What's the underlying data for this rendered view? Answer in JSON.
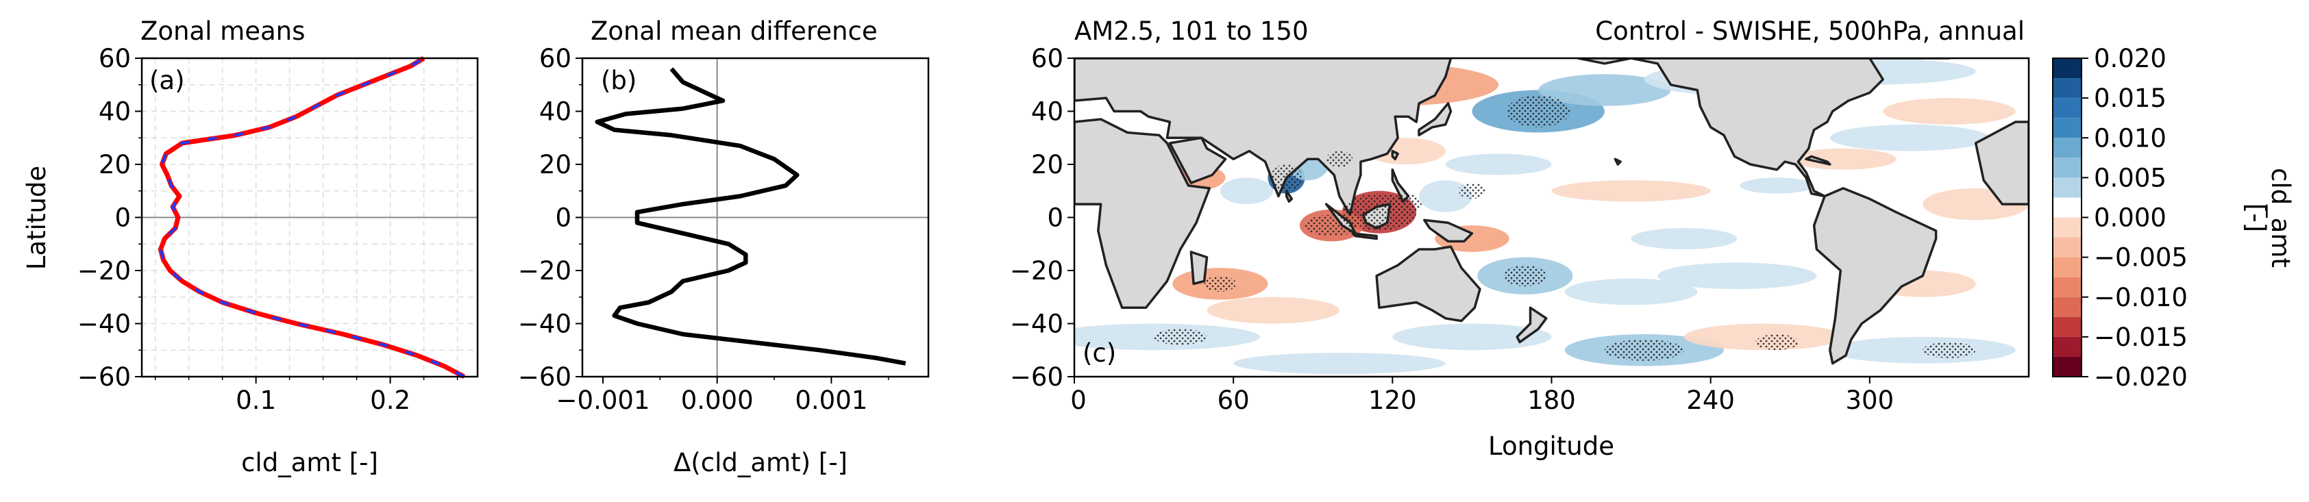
{
  "colors": {
    "ctrl_line": "#ff0000",
    "exp_line": "#1f3bff",
    "diff_line": "#000000",
    "land": "#d8d8d8",
    "coast": "#222222"
  },
  "panel_a": {
    "title": "Zonal means",
    "tag": "(a)",
    "xlabel": "cld_amt [-]",
    "ylabel": "Latitude",
    "xticks": [
      "0.1",
      "0.2"
    ],
    "yticks": [
      "60",
      "40",
      "20",
      "0",
      "−20",
      "−40",
      "−60"
    ]
  },
  "panel_b": {
    "title": "Zonal mean difference",
    "tag": "(b)",
    "xlabel": "Δ(cld_amt) [-]",
    "xticks": [
      "−0.001",
      "0.000",
      "0.001"
    ],
    "yticks": [
      "60",
      "40",
      "20",
      "0",
      "−20",
      "−40",
      "−60"
    ]
  },
  "panel_c": {
    "title_left": "AM2.5, 101 to 150",
    "title_right": "Control - SWISHE, 500hPa, annual",
    "tag": "(c)",
    "xlabel": "Longitude",
    "xticks": [
      "0",
      "60",
      "120",
      "180",
      "240",
      "300"
    ],
    "yticks": [
      "60",
      "40",
      "20",
      "0",
      "−20",
      "−40",
      "−60"
    ]
  },
  "colorbar": {
    "label_line1": "cld_amt",
    "label_line2": "[-]",
    "ticks": [
      "0.020",
      "0.015",
      "0.010",
      "0.005",
      "0.000",
      "−0.005",
      "−0.010",
      "−0.015",
      "−0.020"
    ],
    "levels": [
      "#053061",
      "#1f5f9e",
      "#3b87bf",
      "#6aa9d0",
      "#a0cae2",
      "#cfe3ef",
      "#f5f5f5",
      "#fbd7c4",
      "#f4a482",
      "#de6a55",
      "#c03a3a",
      "#9c1a2d",
      "#67001f"
    ]
  },
  "chart_data": [
    {
      "type": "line",
      "title": "Zonal means",
      "xlabel": "cld_amt [-]",
      "ylabel": "Latitude",
      "xlim": [
        0.015,
        0.265
      ],
      "ylim": [
        -60,
        60
      ],
      "series": [
        {
          "points": [
            [
              0.255,
              -60
            ],
            [
              0.24,
              -56
            ],
            [
              0.22,
              -52
            ],
            [
              0.195,
              -48
            ],
            [
              0.165,
              -44
            ],
            [
              0.13,
              -40
            ],
            [
              0.1,
              -36
            ],
            [
              0.075,
              -32
            ],
            [
              0.058,
              -28
            ],
            [
              0.045,
              -24
            ],
            [
              0.036,
              -20
            ],
            [
              0.031,
              -16
            ],
            [
              0.029,
              -12
            ],
            [
              0.032,
              -8
            ],
            [
              0.04,
              -4
            ],
            [
              0.042,
              0
            ],
            [
              0.038,
              4
            ],
            [
              0.043,
              8
            ],
            [
              0.037,
              12
            ],
            [
              0.034,
              16
            ],
            [
              0.03,
              20
            ],
            [
              0.033,
              24
            ],
            [
              0.045,
              28
            ],
            [
              0.085,
              31
            ],
            [
              0.11,
              34
            ],
            [
              0.12,
              36
            ],
            [
              0.13,
              38
            ],
            [
              0.145,
              42
            ],
            [
              0.16,
              46
            ],
            [
              0.18,
              50
            ],
            [
              0.2,
              54
            ],
            [
              0.215,
              57
            ],
            [
              0.225,
              60
            ]
          ]
        },
        {
          "points": [
            [
              0.255,
              -60
            ],
            [
              0.24,
              -56
            ],
            [
              0.22,
              -52
            ],
            [
              0.195,
              -48
            ],
            [
              0.165,
              -44
            ],
            [
              0.13,
              -40
            ],
            [
              0.1,
              -36
            ],
            [
              0.075,
              -32
            ],
            [
              0.058,
              -28
            ],
            [
              0.045,
              -24
            ],
            [
              0.036,
              -20
            ],
            [
              0.031,
              -16
            ],
            [
              0.029,
              -12
            ],
            [
              0.032,
              -8
            ],
            [
              0.04,
              -4
            ],
            [
              0.042,
              0
            ],
            [
              0.038,
              4
            ],
            [
              0.043,
              8
            ],
            [
              0.037,
              12
            ],
            [
              0.034,
              16
            ],
            [
              0.03,
              20
            ],
            [
              0.033,
              24
            ],
            [
              0.045,
              28
            ],
            [
              0.085,
              31
            ],
            [
              0.11,
              34
            ],
            [
              0.12,
              36
            ],
            [
              0.13,
              38
            ],
            [
              0.145,
              42
            ],
            [
              0.16,
              46
            ],
            [
              0.18,
              50
            ],
            [
              0.2,
              54
            ],
            [
              0.215,
              57
            ],
            [
              0.225,
              60
            ]
          ]
        }
      ]
    },
    {
      "type": "line",
      "title": "Zonal mean difference",
      "xlabel": "Δ(cld_amt) [-]",
      "xlim": [
        -0.00118,
        0.00185
      ],
      "ylim": [
        -60,
        60
      ],
      "series": [
        {
          "points": [
            [
              0.00165,
              -55
            ],
            [
              0.0014,
              -53
            ],
            [
              0.0009,
              -50
            ],
            [
              0.0003,
              -47
            ],
            [
              -0.0003,
              -44
            ],
            [
              -0.0007,
              -40
            ],
            [
              -0.0009,
              -37
            ],
            [
              -0.00085,
              -34
            ],
            [
              -0.0006,
              -32
            ],
            [
              -0.0004,
              -28
            ],
            [
              -0.0003,
              -24
            ],
            [
              0.0001,
              -20
            ],
            [
              0.00025,
              -17
            ],
            [
              0.00025,
              -14
            ],
            [
              0.0001,
              -10
            ],
            [
              -0.0002,
              -7
            ],
            [
              -0.0007,
              -2
            ],
            [
              -0.0007,
              2
            ],
            [
              -0.0003,
              5
            ],
            [
              0.0002,
              8
            ],
            [
              0.0006,
              12
            ],
            [
              0.0007,
              16
            ],
            [
              0.0005,
              22
            ],
            [
              0.0002,
              27
            ],
            [
              -0.0004,
              31
            ],
            [
              -0.0009,
              33
            ],
            [
              -0.00105,
              36
            ],
            [
              -0.0008,
              39
            ],
            [
              -0.0003,
              41
            ],
            [
              5e-05,
              44
            ],
            [
              -0.0001,
              47
            ],
            [
              -0.0003,
              51
            ],
            [
              -0.0004,
              56
            ]
          ]
        }
      ]
    },
    {
      "type": "heatmap",
      "title": "AM2.5, 101 to 150 / Control - SWISHE, 500hPa, annual",
      "xlabel": "Longitude",
      "xlim": [
        0,
        360
      ],
      "ylim": [
        -60,
        60
      ],
      "colorbar_range": [
        -0.02,
        0.02
      ],
      "features": [
        {
          "lon": 80,
          "lat": 15,
          "value": 0.018
        },
        {
          "lon": 115,
          "lat": 2,
          "value": -0.012
        },
        {
          "lon": 95,
          "lat": -3,
          "value": -0.009
        },
        {
          "lon": 175,
          "lat": 35,
          "value": 0.009
        },
        {
          "lon": 215,
          "lat": -50,
          "value": 0.008
        },
        {
          "lon": 170,
          "lat": -22,
          "value": 0.006
        },
        {
          "lon": 55,
          "lat": -25,
          "value": -0.006
        },
        {
          "lon": 45,
          "lat": 15,
          "value": -0.005
        },
        {
          "lon": 310,
          "lat": 40,
          "value": -0.004
        }
      ]
    }
  ]
}
